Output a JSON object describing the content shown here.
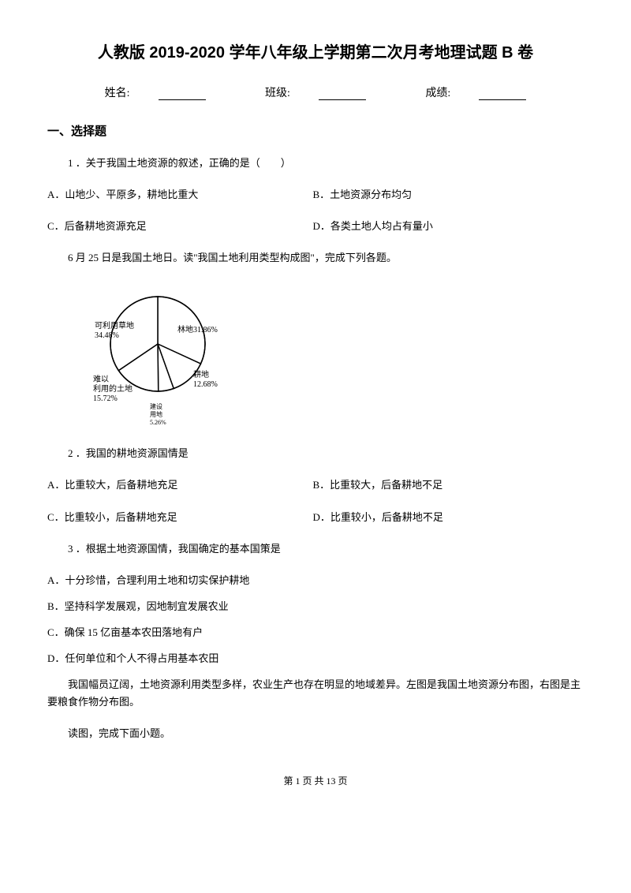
{
  "title": "人教版 2019-2020 学年八年级上学期第二次月考地理试题 B 卷",
  "info": {
    "name_label": "姓名:",
    "class_label": "班级:",
    "score_label": "成绩:"
  },
  "section1": "一、选择题",
  "q1": {
    "text": "1 ．关于我国土地资源的叙述，正确的是（　　）",
    "a": "A．山地少、平原多，耕地比重大",
    "b": "B．土地资源分布均匀",
    "c": "C．后备耕地资源充足",
    "d": "D．各类土地人均占有量小"
  },
  "intro2": "6 月 25 日是我国土地日。读\"我国土地利用类型构成图\"，完成下列各题。",
  "chart": {
    "slices": [
      {
        "label": "可利用草地",
        "value": 34.48,
        "label_text": "可利用草地\n34.48%"
      },
      {
        "label": "林地",
        "value": 31.86,
        "label_text": "林地31.86%"
      },
      {
        "label": "耕地",
        "value": 12.68,
        "label_text": "耕地\n12.68%"
      },
      {
        "label": "建设用地",
        "value": 5.26,
        "label_text": "建设用地\n5.26%"
      },
      {
        "label": "难以利用的土地",
        "value": 15.72,
        "label_text": "难以\n利用的土地\n15.72%"
      }
    ],
    "stroke": "#000000",
    "fill": "#ffffff",
    "font_size": 10,
    "radius": 60
  },
  "q2": {
    "text": "2 ．我国的耕地资源国情是",
    "a": "A．比重较大，后备耕地充足",
    "b": "B．比重较大，后备耕地不足",
    "c": "C．比重较小，后备耕地充足",
    "d": "D．比重较小，后备耕地不足"
  },
  "q3": {
    "text": "3 ．根据土地资源国情，我国确定的基本国策是",
    "a": "A．十分珍惜，合理利用土地和切实保护耕地",
    "b": "B．坚持科学发展观，因地制宜发展农业",
    "c": "C．确保 15 亿亩基本农田落地有户",
    "d": "D．任何单位和个人不得占用基本农田"
  },
  "intro4_p1": "我国幅员辽阔，土地资源利用类型多样，农业生产也存在明显的地域差异。左图是我国土地资源分布图，右图是主要粮食作物分布图。",
  "intro4_p2": "读图，完成下面小题。",
  "footer": "第 1 页 共 13 页"
}
